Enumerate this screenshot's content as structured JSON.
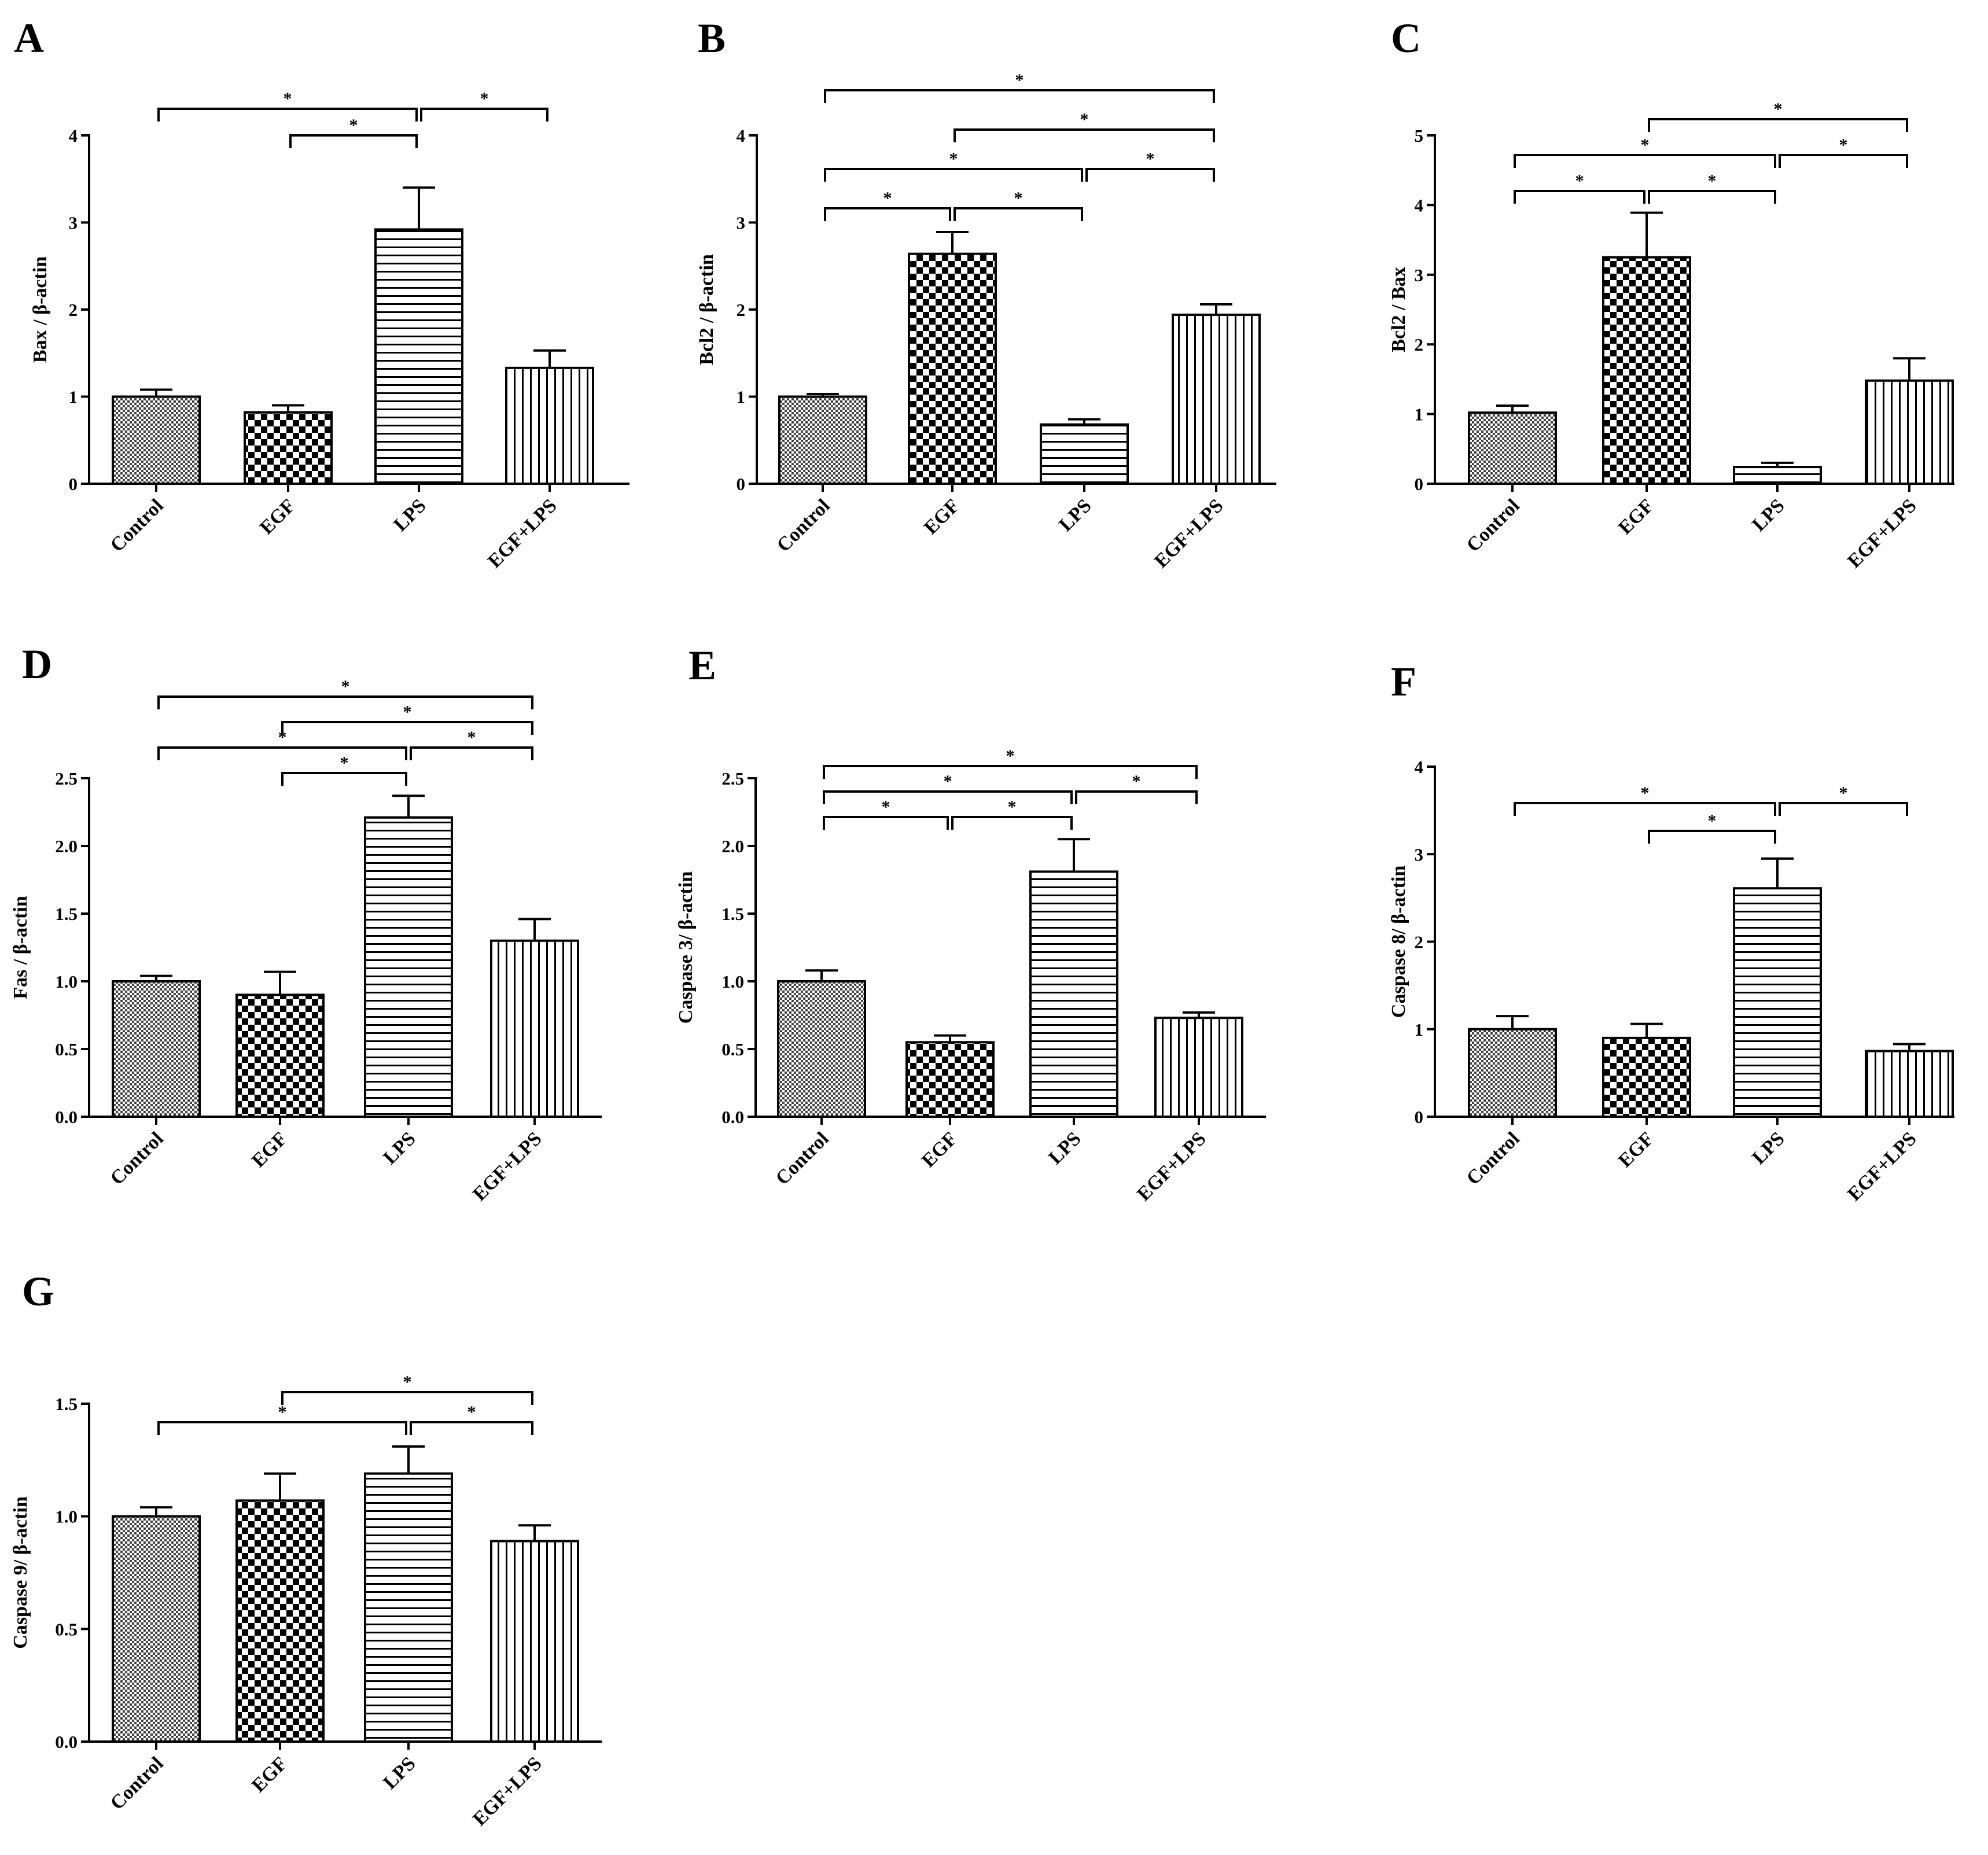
{
  "figure": {
    "categories": [
      "Control",
      "EGF",
      "LPS",
      "EGF+LPS"
    ],
    "significance_symbol": "*"
  },
  "chart_data": [
    {
      "type": "bar",
      "panel": "A",
      "ylabel": "Bax / β-actin",
      "categories": [
        "Control",
        "EGF",
        "LPS",
        "EGF+LPS"
      ],
      "values": [
        1.0,
        0.82,
        2.92,
        1.33
      ],
      "errors": [
        0.08,
        0.08,
        0.48,
        0.2
      ],
      "ylim": [
        0,
        4
      ],
      "yticks": [
        "0",
        "1",
        "2",
        "3",
        "4"
      ],
      "significance": [
        [
          "Control",
          "LPS"
        ],
        [
          "EGF",
          "LPS"
        ],
        [
          "LPS",
          "EGF+LPS"
        ]
      ]
    },
    {
      "type": "bar",
      "panel": "B",
      "ylabel": "Bcl2 / β-actin",
      "categories": [
        "Control",
        "EGF",
        "LPS",
        "EGF+LPS"
      ],
      "values": [
        1.0,
        2.64,
        0.68,
        1.94
      ],
      "errors": [
        0.03,
        0.25,
        0.06,
        0.12
      ],
      "ylim": [
        0,
        4
      ],
      "yticks": [
        "0",
        "1",
        "2",
        "3",
        "4"
      ],
      "significance": [
        [
          "Control",
          "EGF+LPS"
        ],
        [
          "EGF",
          "EGF+LPS"
        ],
        [
          "Control",
          "LPS"
        ],
        [
          "Control",
          "EGF"
        ],
        [
          "EGF",
          "LPS"
        ],
        [
          "LPS",
          "EGF+LPS"
        ]
      ]
    },
    {
      "type": "bar",
      "panel": "C",
      "ylabel": "Bcl2 / Bax",
      "categories": [
        "Control",
        "EGF",
        "LPS",
        "EGF+LPS"
      ],
      "values": [
        1.02,
        3.25,
        0.24,
        1.48
      ],
      "errors": [
        0.1,
        0.64,
        0.06,
        0.32
      ],
      "ylim": [
        0,
        5
      ],
      "yticks": [
        "0",
        "1",
        "2",
        "3",
        "4",
        "5"
      ],
      "significance": [
        [
          "EGF",
          "EGF+LPS"
        ],
        [
          "Control",
          "LPS"
        ],
        [
          "Control",
          "EGF"
        ],
        [
          "EGF",
          "LPS"
        ],
        [
          "LPS",
          "EGF+LPS"
        ]
      ]
    },
    {
      "type": "bar",
      "panel": "D",
      "ylabel": "Fas / β-actin",
      "categories": [
        "Control",
        "EGF",
        "LPS",
        "EGF+LPS"
      ],
      "values": [
        1.0,
        0.9,
        2.21,
        1.3
      ],
      "errors": [
        0.04,
        0.17,
        0.16,
        0.16
      ],
      "ylim": [
        0,
        2.5
      ],
      "yticks": [
        "0.0",
        "0.5",
        "1.0",
        "1.5",
        "2.0",
        "2.5"
      ],
      "significance": [
        [
          "Control",
          "EGF+LPS"
        ],
        [
          "EGF",
          "EGF+LPS"
        ],
        [
          "Control",
          "LPS"
        ],
        [
          "EGF",
          "LPS"
        ],
        [
          "LPS",
          "EGF+LPS"
        ]
      ]
    },
    {
      "type": "bar",
      "panel": "E",
      "ylabel": "Caspase 3/ β-actin",
      "categories": [
        "Control",
        "EGF",
        "LPS",
        "EGF+LPS"
      ],
      "values": [
        1.0,
        0.55,
        1.81,
        0.73
      ],
      "errors": [
        0.08,
        0.05,
        0.24,
        0.04
      ],
      "ylim": [
        0,
        2.5
      ],
      "yticks": [
        "0.0",
        "0.5",
        "1.0",
        "1.5",
        "2.0",
        "2.5"
      ],
      "significance": [
        [
          "Control",
          "EGF+LPS"
        ],
        [
          "Control",
          "LPS"
        ],
        [
          "EGF",
          "LPS"
        ],
        [
          "LPS",
          "EGF+LPS"
        ],
        [
          "Control",
          "EGF"
        ]
      ]
    },
    {
      "type": "bar",
      "panel": "F",
      "ylabel": "Caspase 8/ β-actin",
      "categories": [
        "Control",
        "EGF",
        "LPS",
        "EGF+LPS"
      ],
      "values": [
        1.0,
        0.9,
        2.61,
        0.75
      ],
      "errors": [
        0.15,
        0.16,
        0.34,
        0.08
      ],
      "ylim": [
        0,
        4
      ],
      "yticks": [
        "0",
        "1",
        "2",
        "3",
        "4"
      ],
      "significance": [
        [
          "Control",
          "LPS"
        ],
        [
          "EGF",
          "LPS"
        ],
        [
          "LPS",
          "EGF+LPS"
        ]
      ]
    },
    {
      "type": "bar",
      "panel": "G",
      "ylabel": "Caspase 9/ β-actin",
      "categories": [
        "Control",
        "EGF",
        "LPS",
        "EGF+LPS"
      ],
      "values": [
        1.0,
        1.07,
        1.19,
        0.89
      ],
      "errors": [
        0.04,
        0.12,
        0.12,
        0.07
      ],
      "ylim": [
        0,
        1.5
      ],
      "yticks": [
        "0.0",
        "0.5",
        "1.0",
        "1.5"
      ],
      "significance": [
        [
          "EGF",
          "EGF+LPS"
        ],
        [
          "Control",
          "LPS"
        ],
        [
          "LPS",
          "EGF+LPS"
        ]
      ]
    }
  ]
}
